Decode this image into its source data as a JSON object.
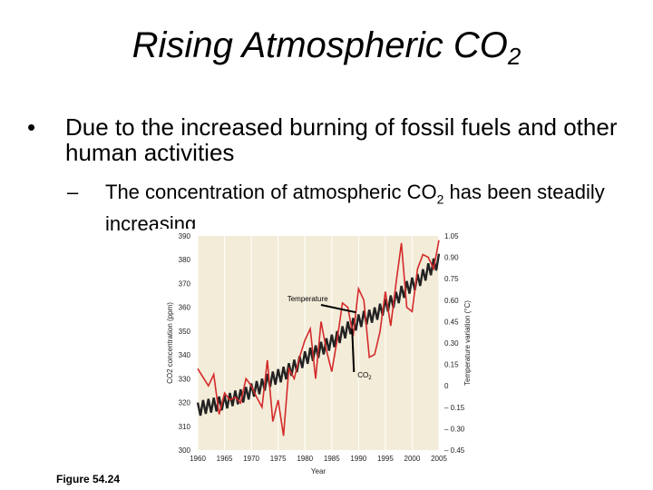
{
  "slide": {
    "title": "Rising Atmospheric CO",
    "title_sub": "2",
    "bullet1_marker": "•",
    "bullet1": "Due to the increased burning of fossil fuels and other human activities",
    "bullet2_marker": "–",
    "bullet2_a": "The concentration of atmospheric CO",
    "bullet2_sub": "2",
    "bullet2_b": " has been steadily increasing",
    "figure_label": "Figure 54.24"
  },
  "chart_data": {
    "type": "line",
    "xlabel": "Year",
    "ylabel_left": "CO2 concentration (ppm)",
    "ylabel_right": "Temperature variation (°C)",
    "xlim": [
      1960,
      2005
    ],
    "ylim_left": [
      300,
      390
    ],
    "ylim_right": [
      -0.45,
      1.05
    ],
    "x_ticks": [
      1960,
      1965,
      1970,
      1975,
      1980,
      1985,
      1990,
      1995,
      2000,
      2005
    ],
    "y_left_ticks": [
      300,
      310,
      320,
      330,
      340,
      350,
      360,
      370,
      380,
      390
    ],
    "y_right_ticks": [
      -0.45,
      -0.3,
      -0.15,
      0,
      0.15,
      0.3,
      0.45,
      0.6,
      0.75,
      0.9,
      1.05
    ],
    "y_right_tick_labels": [
      "– 0.45",
      "– 0.30",
      "– 0.15",
      "0",
      "0.15",
      "0.30",
      "0.45",
      "0.60",
      "0.75",
      "0.90",
      "1.05"
    ],
    "grid": "vertical",
    "colors": {
      "co2": "#222222",
      "temperature": "#d42a2a",
      "panel": "#f3ecd9",
      "grid": "#ffffff"
    },
    "series": [
      {
        "name": "CO2",
        "axis": "left",
        "x": [
          1960,
          1961,
          1962,
          1963,
          1964,
          1965,
          1966,
          1967,
          1968,
          1969,
          1970,
          1971,
          1972,
          1973,
          1974,
          1975,
          1976,
          1977,
          1978,
          1979,
          1980,
          1981,
          1982,
          1983,
          1984,
          1985,
          1986,
          1987,
          1988,
          1989,
          1990,
          1991,
          1992,
          1993,
          1994,
          1995,
          1996,
          1997,
          1998,
          1999,
          2000,
          2001,
          2002,
          2003,
          2004,
          2005
        ],
        "values": [
          317,
          318,
          318.5,
          319,
          319.5,
          320,
          321,
          322,
          322.5,
          323.5,
          325,
          326,
          327,
          329,
          330,
          331,
          332,
          333.5,
          335,
          336.5,
          338.5,
          340,
          341,
          342.5,
          344,
          345.5,
          347,
          349,
          351,
          352.5,
          354,
          355.5,
          356,
          357,
          358.5,
          360.5,
          362,
          363.5,
          366,
          368,
          369.5,
          371,
          373,
          375.5,
          377.5,
          379.5
        ],
        "seasonal_amplitude_ppm": 3
      },
      {
        "name": "Temperature",
        "axis": "right",
        "x": [
          1960,
          1961,
          1962,
          1963,
          1964,
          1965,
          1966,
          1967,
          1968,
          1969,
          1970,
          1971,
          1972,
          1973,
          1974,
          1975,
          1976,
          1977,
          1978,
          1979,
          1980,
          1981,
          1982,
          1983,
          1984,
          1985,
          1986,
          1987,
          1988,
          1989,
          1990,
          1991,
          1992,
          1993,
          1994,
          1995,
          1996,
          1997,
          1998,
          1999,
          2000,
          2001,
          2002,
          2003,
          2004,
          2005
        ],
        "values": [
          0.12,
          0.06,
          0.0,
          0.08,
          -0.2,
          -0.05,
          -0.1,
          -0.08,
          -0.12,
          0.05,
          0.0,
          -0.08,
          -0.15,
          0.18,
          -0.25,
          -0.1,
          -0.35,
          0.12,
          0.05,
          0.2,
          0.32,
          0.4,
          0.05,
          0.45,
          0.25,
          0.1,
          0.32,
          0.58,
          0.55,
          0.35,
          0.68,
          0.6,
          0.2,
          0.22,
          0.38,
          0.66,
          0.42,
          0.72,
          1.0,
          0.55,
          0.52,
          0.82,
          0.92,
          0.9,
          0.82,
          1.02
        ]
      }
    ],
    "annotations": [
      {
        "text": "Temperature",
        "series": "Temperature",
        "x": 1989.5
      },
      {
        "text": "CO",
        "sub": "2",
        "series": "CO2",
        "x": 1988.8
      }
    ]
  }
}
